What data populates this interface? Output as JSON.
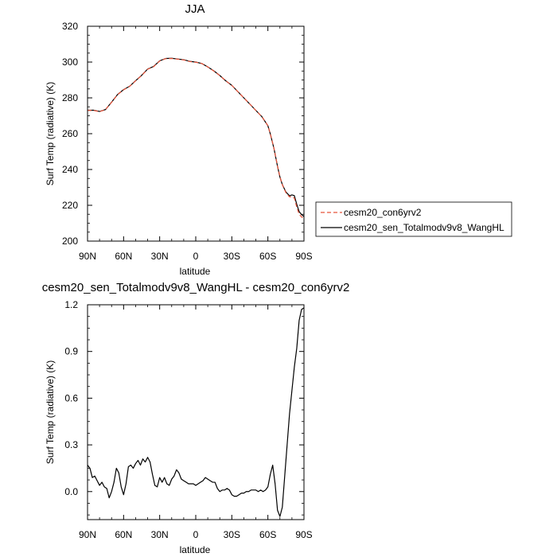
{
  "chart_data": [
    {
      "type": "line",
      "title": "JJA",
      "xlabel": "latitude",
      "ylabel": "Surf Temp (radiative) (K)",
      "xlim": [
        90,
        -90
      ],
      "ylim": [
        200,
        320
      ],
      "x_ticks": [
        90,
        60,
        30,
        0,
        -30,
        -60,
        -90
      ],
      "x_tick_labels": [
        "90N",
        "60N",
        "30N",
        "0",
        "30S",
        "60S",
        "90S"
      ],
      "y_ticks": [
        200,
        220,
        240,
        260,
        280,
        300,
        320
      ],
      "y_tick_labels": [
        "200",
        "220",
        "240",
        "260",
        "280",
        "300",
        "320"
      ],
      "legend_position": "right, outside plot",
      "x": [
        90,
        85,
        80,
        75,
        70,
        65,
        60,
        55,
        50,
        45,
        40,
        35,
        30,
        25,
        20,
        15,
        10,
        5,
        0,
        -5,
        -10,
        -15,
        -20,
        -25,
        -30,
        -35,
        -40,
        -45,
        -50,
        -55,
        -60,
        -62,
        -65,
        -68,
        -70,
        -72,
        -75,
        -78,
        -80,
        -82,
        -84,
        -86,
        -88,
        -90
      ],
      "series": [
        {
          "name": "cesm20_con6yrv2",
          "color": "#e8533a",
          "dash": "dashed",
          "values": [
            273,
            273,
            272.3,
            273.5,
            277.5,
            281.8,
            284.5,
            286.4,
            289.5,
            292.5,
            296,
            297.4,
            300.6,
            301.9,
            302,
            301.6,
            301.2,
            300.3,
            299.9,
            299.2,
            297.3,
            295,
            292.5,
            289.5,
            287,
            283.5,
            280,
            276.5,
            273,
            269.5,
            264.5,
            260,
            252,
            242,
            236,
            231.5,
            227,
            224.7,
            224.8,
            224,
            219,
            215,
            213.5,
            212.5
          ]
        },
        {
          "name": "cesm20_sen_Totalmodv9v8_WangHL",
          "color": "#000000",
          "dash": "solid",
          "values": [
            273.1,
            273.1,
            272.4,
            273.5,
            277.6,
            281.9,
            284.6,
            286.5,
            289.6,
            292.6,
            296.1,
            297.6,
            300.7,
            302.0,
            302.1,
            301.7,
            301.3,
            300.4,
            300.0,
            299.2,
            297.3,
            295.1,
            292.5,
            289.5,
            287.0,
            283.5,
            280.0,
            276.5,
            273.0,
            269.5,
            264.4,
            259.9,
            251.9,
            241.8,
            235.8,
            231.6,
            227.4,
            225.3,
            225.8,
            225.4,
            220.6,
            216.5,
            214.8,
            213.7
          ]
        }
      ]
    },
    {
      "type": "line",
      "title": "cesm20_sen_Totalmodv9v8_WangHL - cesm20_con6yrv2",
      "xlabel": "latitude",
      "ylabel": "Surf Temp (radiative) (K)",
      "xlim": [
        90,
        -90
      ],
      "ylim": [
        -0.18,
        1.2
      ],
      "x_ticks": [
        90,
        60,
        30,
        0,
        -30,
        -60,
        -90
      ],
      "x_tick_labels": [
        "90N",
        "60N",
        "30N",
        "0",
        "30S",
        "60S",
        "90S"
      ],
      "y_ticks": [
        0,
        0.3,
        0.6,
        0.9,
        1.2
      ],
      "y_tick_labels": [
        "0.0",
        "0.3",
        "0.6",
        "0.9",
        "1.2"
      ],
      "x": [
        90,
        88,
        86,
        84,
        82,
        80,
        78,
        76,
        74,
        72,
        70,
        68,
        66,
        64,
        62,
        60,
        58,
        56,
        54,
        52,
        50,
        48,
        46,
        44,
        42,
        40,
        38,
        36,
        34,
        32,
        30,
        28,
        26,
        24,
        22,
        20,
        18,
        16,
        14,
        12,
        10,
        8,
        6,
        4,
        2,
        0,
        -2,
        -4,
        -6,
        -8,
        -10,
        -12,
        -14,
        -16,
        -18,
        -20,
        -22,
        -24,
        -26,
        -28,
        -30,
        -32,
        -34,
        -36,
        -38,
        -40,
        -42,
        -44,
        -46,
        -48,
        -50,
        -52,
        -54,
        -56,
        -58,
        -60,
        -62,
        -64,
        -66,
        -68,
        -70,
        -72,
        -74,
        -76,
        -78,
        -80,
        -82,
        -84,
        -86,
        -88,
        -90
      ],
      "series": [
        {
          "name": "",
          "color": "#000000",
          "dash": "solid",
          "values": [
            0.17,
            0.15,
            0.09,
            0.1,
            0.07,
            0.04,
            0.06,
            0.03,
            0.02,
            -0.04,
            0.0,
            0.06,
            0.15,
            0.12,
            0.03,
            -0.02,
            0.05,
            0.16,
            0.17,
            0.15,
            0.18,
            0.2,
            0.17,
            0.21,
            0.19,
            0.22,
            0.19,
            0.11,
            0.04,
            0.03,
            0.09,
            0.06,
            0.09,
            0.05,
            0.04,
            0.08,
            0.1,
            0.14,
            0.12,
            0.08,
            0.07,
            0.06,
            0.05,
            0.05,
            0.05,
            0.04,
            0.05,
            0.06,
            0.07,
            0.09,
            0.08,
            0.07,
            0.06,
            0.06,
            0.02,
            0.0,
            0.01,
            0.01,
            0.02,
            0.01,
            -0.02,
            -0.03,
            -0.03,
            -0.02,
            -0.01,
            -0.01,
            0.0,
            0.0,
            0.01,
            0.01,
            0.01,
            0.0,
            0.01,
            0.0,
            0.01,
            0.03,
            0.11,
            0.17,
            0.05,
            -0.12,
            -0.16,
            -0.1,
            0.1,
            0.3,
            0.5,
            0.65,
            0.8,
            0.92,
            1.1,
            1.17,
            1.18
          ]
        }
      ]
    }
  ]
}
